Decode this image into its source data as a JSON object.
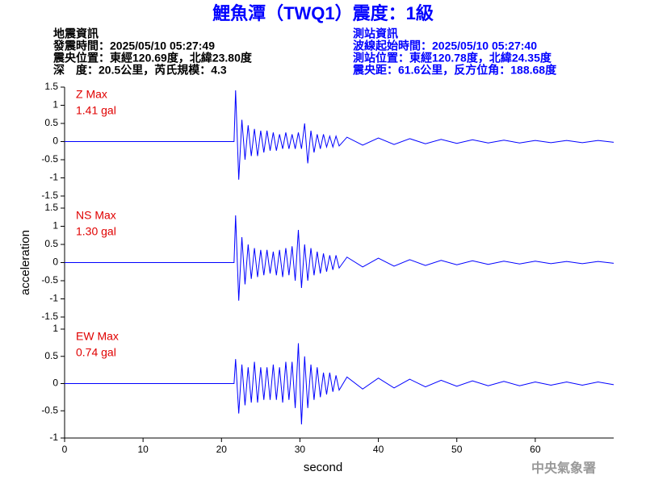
{
  "header": {
    "title": "鯉魚潭（TWQ1）震度：1級",
    "left": [
      "地震資訊",
      "發震時間：2025/05/10 05:27:49",
      "震央位置：東經120.69度，北緯23.80度",
      "深　度：20.5公里，芮氏規模：4.3"
    ],
    "right": [
      "測站資訊",
      "波線起始時間：2025/05/10 05:27:40",
      "測站位置：東經120.78度，北緯24.35度",
      "震央距：61.6公里，反方位角：188.68度"
    ],
    "footer": "中央氣象署"
  },
  "chart_data": [
    {
      "type": "line",
      "label": "Z Max",
      "max_label": "1.41 gal",
      "color": "#0000ff",
      "x": [
        0,
        21.6,
        21.8,
        22.2,
        22.6,
        23.0,
        23.4,
        23.8,
        24.2,
        24.6,
        25.0,
        25.4,
        25.8,
        26.2,
        26.6,
        27.0,
        27.4,
        27.8,
        28.2,
        28.6,
        29.0,
        29.4,
        29.8,
        30.2,
        30.6,
        31.0,
        31.4,
        31.8,
        32.2,
        32.6,
        33.0,
        33.4,
        33.8,
        34.2,
        34.6,
        35,
        36,
        38,
        40,
        42,
        44,
        46,
        48,
        50,
        52,
        54,
        56,
        58,
        60,
        62,
        64,
        66,
        68,
        70
      ],
      "values": [
        0,
        0,
        1.41,
        -1.05,
        0.6,
        -0.5,
        0.45,
        -0.4,
        0.35,
        -0.4,
        0.3,
        -0.3,
        0.3,
        -0.25,
        0.25,
        -0.25,
        0.2,
        -0.2,
        0.25,
        -0.2,
        0.2,
        -0.2,
        0.25,
        -0.2,
        0.5,
        -0.6,
        0.3,
        -0.3,
        0.2,
        -0.2,
        0.2,
        -0.15,
        0.15,
        -0.15,
        0.15,
        -0.12,
        0.12,
        -0.1,
        0.1,
        -0.08,
        0.08,
        -0.06,
        0.06,
        -0.05,
        0.05,
        -0.04,
        0.04,
        -0.04,
        0.03,
        -0.03,
        0.03,
        -0.03,
        0.03,
        -0.02
      ],
      "xlim": [
        0,
        70
      ],
      "ylim": [
        -1.5,
        1.5
      ],
      "yticks": [
        -1.5,
        -1,
        -0.5,
        0,
        0.5,
        1,
        1.5
      ]
    },
    {
      "type": "line",
      "label": "NS Max",
      "max_label": "1.30 gal",
      "color": "#0000ff",
      "ylabel": "acceleration",
      "x": [
        0,
        21.6,
        21.8,
        22.2,
        22.6,
        23.0,
        23.4,
        23.8,
        24.2,
        24.6,
        25.0,
        25.4,
        25.8,
        26.2,
        26.6,
        27.0,
        27.4,
        27.8,
        28.2,
        28.6,
        29.0,
        29.4,
        29.8,
        30.2,
        30.6,
        31.0,
        31.4,
        31.8,
        32.2,
        32.6,
        33.0,
        33.4,
        33.8,
        34.2,
        34.6,
        35,
        36,
        38,
        40,
        42,
        44,
        46,
        48,
        50,
        52,
        54,
        56,
        58,
        60,
        62,
        64,
        66,
        68,
        70
      ],
      "values": [
        0,
        0,
        1.3,
        -1.05,
        0.7,
        -0.6,
        0.5,
        -0.45,
        0.4,
        -0.4,
        0.35,
        -0.35,
        0.35,
        -0.3,
        0.3,
        -0.35,
        0.35,
        -0.4,
        0.4,
        -0.35,
        0.45,
        -0.5,
        0.9,
        -0.7,
        0.5,
        -0.5,
        0.4,
        -0.35,
        0.3,
        -0.3,
        0.25,
        -0.25,
        0.2,
        -0.2,
        0.2,
        -0.15,
        0.15,
        -0.12,
        0.12,
        -0.1,
        0.08,
        -0.08,
        0.06,
        -0.06,
        0.05,
        -0.05,
        0.04,
        -0.04,
        0.04,
        -0.03,
        0.03,
        -0.03,
        0.03,
        -0.02
      ],
      "xlim": [
        0,
        70
      ],
      "ylim": [
        -1.5,
        1.5
      ],
      "yticks": [
        -1.5,
        -1,
        -0.5,
        0,
        0.5,
        1,
        1.5
      ]
    },
    {
      "type": "line",
      "label": "EW Max",
      "max_label": "0.74 gal",
      "color": "#0000ff",
      "xlabel": "second",
      "x": [
        0,
        21.6,
        21.8,
        22.2,
        22.6,
        23.0,
        23.4,
        23.8,
        24.2,
        24.6,
        25.0,
        25.4,
        25.8,
        26.2,
        26.6,
        27.0,
        27.4,
        27.8,
        28.2,
        28.6,
        29.0,
        29.4,
        29.8,
        30.2,
        30.6,
        31.0,
        31.4,
        31.8,
        32.2,
        32.6,
        33.0,
        33.4,
        33.8,
        34.2,
        34.6,
        35,
        36,
        38,
        40,
        42,
        44,
        46,
        48,
        50,
        52,
        54,
        56,
        58,
        60,
        62,
        64,
        66,
        68,
        70
      ],
      "values": [
        0,
        0,
        0.45,
        -0.55,
        0.35,
        -0.4,
        0.3,
        -0.35,
        0.4,
        -0.35,
        0.3,
        -0.3,
        0.3,
        -0.3,
        0.35,
        -0.3,
        0.3,
        -0.35,
        0.4,
        -0.3,
        0.4,
        -0.45,
        0.74,
        -0.75,
        0.5,
        -0.45,
        0.35,
        -0.3,
        0.3,
        -0.25,
        0.2,
        -0.2,
        0.2,
        -0.15,
        0.15,
        -0.12,
        0.12,
        -0.1,
        0.1,
        -0.08,
        0.08,
        -0.06,
        0.06,
        -0.05,
        0.05,
        -0.04,
        0.04,
        -0.04,
        0.03,
        -0.03,
        0.03,
        -0.03,
        0.03,
        -0.02
      ],
      "xlim": [
        0,
        70
      ],
      "ylim": [
        -1,
        1
      ],
      "yticks": [
        -1,
        -0.5,
        0,
        0.5,
        1
      ],
      "xticks": [
        0,
        10,
        20,
        30,
        40,
        50,
        60
      ]
    }
  ]
}
